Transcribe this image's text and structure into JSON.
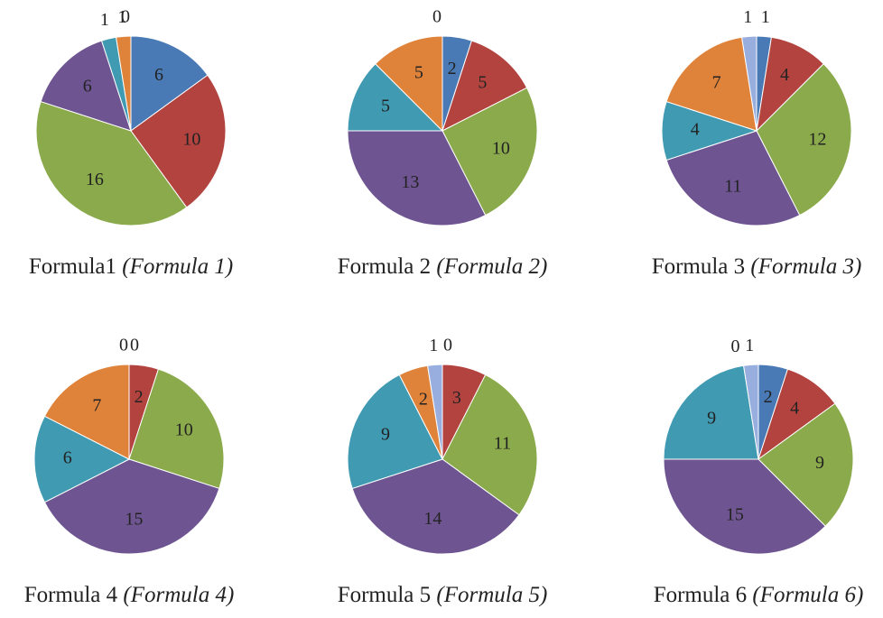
{
  "chart_data": [
    {
      "type": "pie",
      "title": "Formula1",
      "subtitle": "(Formula 1)",
      "values": [
        6,
        10,
        16,
        6,
        1,
        1,
        0
      ],
      "colors": [
        "#4a7ab5",
        "#b3433f",
        "#8aaa4b",
        "#6e5592",
        "#3f9ab2",
        "#e0833a",
        "#98aede"
      ]
    },
    {
      "type": "pie",
      "title": "Formula 2",
      "subtitle": "(Formula 2)",
      "values": [
        2,
        5,
        10,
        13,
        5,
        5,
        0
      ],
      "colors": [
        "#4a7ab5",
        "#b3433f",
        "#8aaa4b",
        "#6e5592",
        "#3f9ab2",
        "#e0833a",
        "#98aede"
      ]
    },
    {
      "type": "pie",
      "title": "Formula 3",
      "subtitle": "(Formula 3)",
      "values": [
        1,
        4,
        12,
        11,
        4,
        7,
        1
      ],
      "colors": [
        "#4a7ab5",
        "#b3433f",
        "#8aaa4b",
        "#6e5592",
        "#3f9ab2",
        "#e0833a",
        "#98aede"
      ]
    },
    {
      "type": "pie",
      "title": "Formula 4",
      "subtitle": "(Formula 4)",
      "values": [
        0,
        2,
        10,
        15,
        6,
        7,
        0
      ],
      "colors": [
        "#4a7ab5",
        "#b3433f",
        "#8aaa4b",
        "#6e5592",
        "#3f9ab2",
        "#e0833a",
        "#98aede"
      ]
    },
    {
      "type": "pie",
      "title": "Formula 5",
      "subtitle": "(Formula 5)",
      "values": [
        0,
        3,
        11,
        14,
        9,
        2,
        1
      ],
      "colors": [
        "#4a7ab5",
        "#b3433f",
        "#8aaa4b",
        "#6e5592",
        "#3f9ab2",
        "#e0833a",
        "#98aede"
      ]
    },
    {
      "type": "pie",
      "title": "Formula 6",
      "subtitle": "(Formula 6)",
      "values": [
        2,
        4,
        9,
        15,
        9,
        0,
        1
      ],
      "colors": [
        "#4a7ab5",
        "#b3433f",
        "#8aaa4b",
        "#6e5592",
        "#3f9ab2",
        "#e0833a",
        "#98aede"
      ]
    }
  ]
}
